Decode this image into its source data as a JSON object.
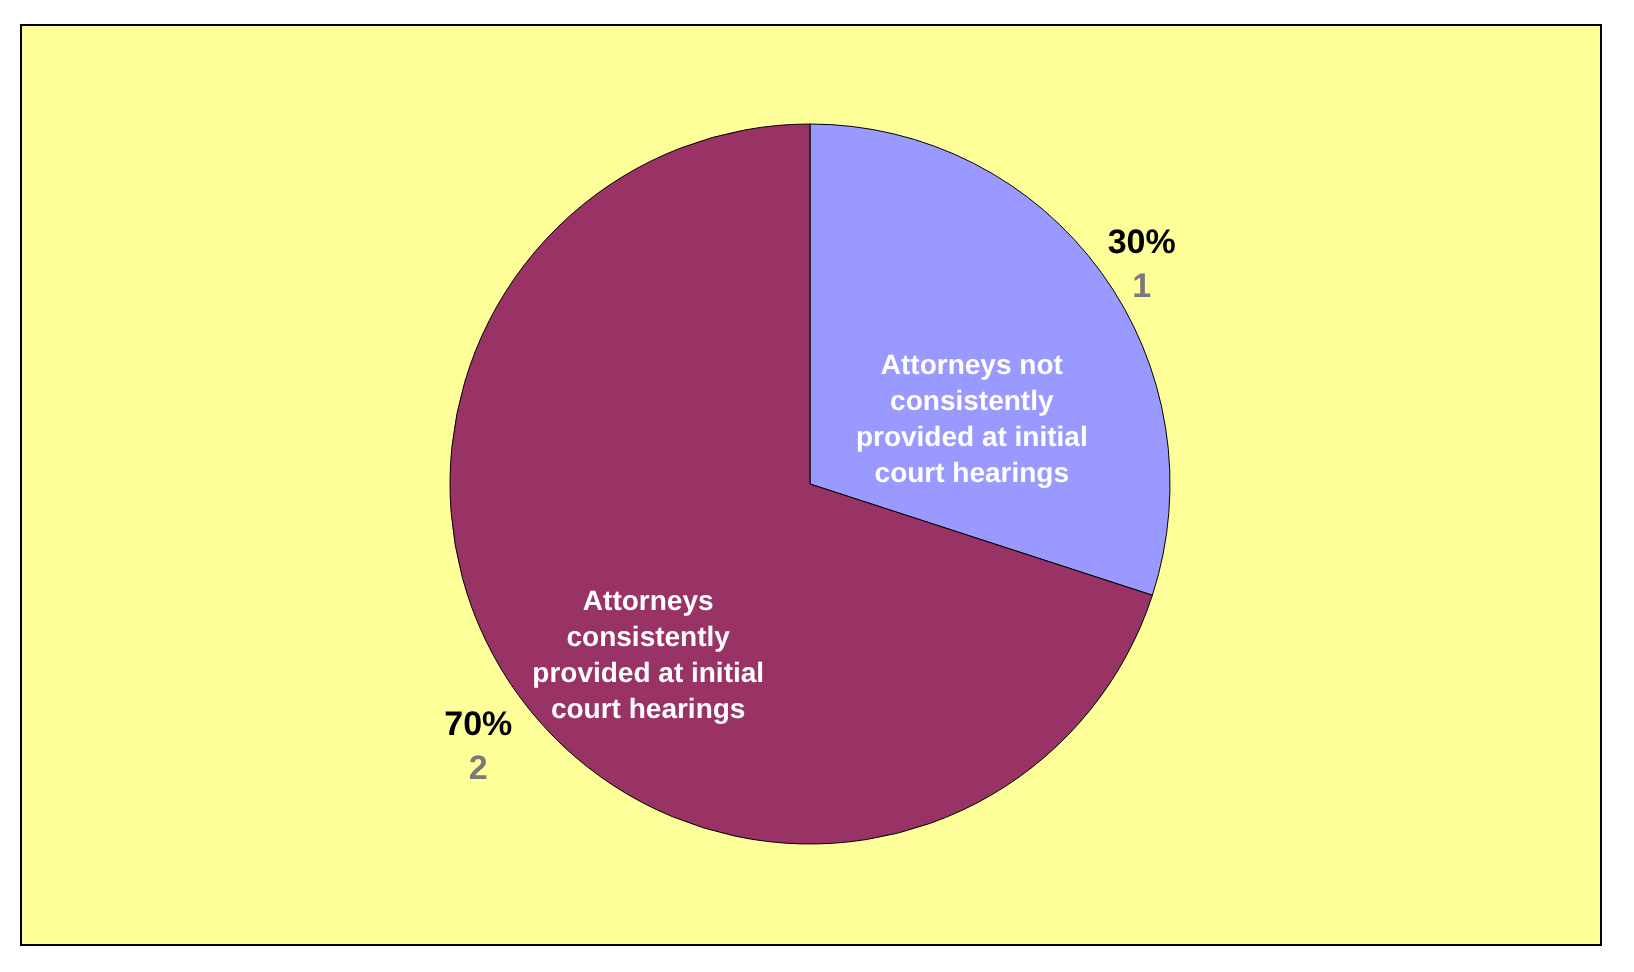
{
  "chart_data": {
    "type": "pie",
    "categories": [
      "Attorneys not consistently provided at initial court hearings",
      "Attorneys consistently provided at initial court hearings"
    ],
    "values": [
      30,
      70
    ],
    "colors": [
      "#9999ff",
      "#993366"
    ],
    "value_labels": [
      "30%",
      "70%"
    ],
    "annotations": [
      "1",
      "2"
    ]
  }
}
